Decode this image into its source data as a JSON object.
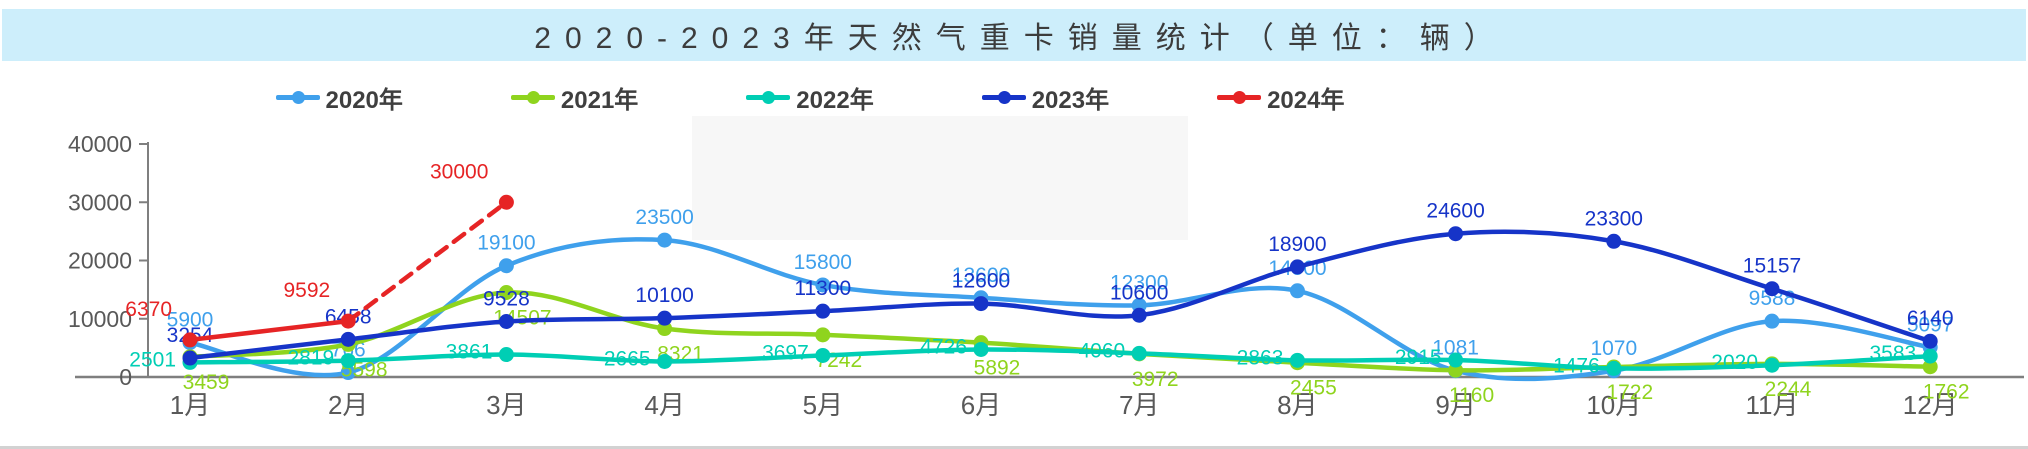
{
  "title": {
    "text": "2020-2023年天然气重卡销量统计（单位：辆）"
  },
  "colors": {
    "banner_bg": "#cdeefb",
    "axis": "#7f7f7f",
    "tick_label": "#595959",
    "series_2020": "#3fa0ec",
    "series_2021": "#8fd41e",
    "series_2022": "#00ceb4",
    "series_2023": "#1634c8",
    "series_2024": "#e62425"
  },
  "chart_data": {
    "type": "line",
    "title": "2020-2023年天然气重卡销量统计（单位：辆）",
    "xlabel": "",
    "ylabel": "",
    "ylim": [
      0,
      40000
    ],
    "yticks": [
      0,
      10000,
      20000,
      30000,
      40000
    ],
    "grid": false,
    "legend_position": "top",
    "categories": [
      "1月",
      "2月",
      "3月",
      "4月",
      "5月",
      "6月",
      "7月",
      "8月",
      "9月",
      "10月",
      "11月",
      "12月"
    ],
    "series": [
      {
        "name": "2020年",
        "color": "#3fa0ec",
        "dashed_from_index": null,
        "values": [
          5900,
          766,
          19100,
          23500,
          15800,
          13600,
          12300,
          14800,
          1081,
          1070,
          9588,
          5097
        ]
      },
      {
        "name": "2021年",
        "color": "#8fd41e",
        "dashed_from_index": null,
        "values": [
          3459,
          5598,
          14507,
          8321,
          7242,
          5892,
          3972,
          2455,
          1160,
          1722,
          2244,
          1762
        ]
      },
      {
        "name": "2022年",
        "color": "#00ceb4",
        "dashed_from_index": null,
        "values": [
          2501,
          2819,
          3861,
          2665,
          3697,
          4726,
          4060,
          2863,
          2915,
          1476,
          2020,
          3583
        ]
      },
      {
        "name": "2023年",
        "color": "#1634c8",
        "dashed_from_index": null,
        "values": [
          3254,
          6458,
          9528,
          10100,
          11300,
          12600,
          10600,
          18900,
          24600,
          23300,
          15157,
          6140
        ]
      },
      {
        "name": "2024年",
        "color": "#e62425",
        "dashed_from_index": 1,
        "values": [
          6370,
          9592,
          30000,
          null,
          null,
          null,
          null,
          null,
          null,
          null,
          null,
          null
        ]
      }
    ]
  }
}
